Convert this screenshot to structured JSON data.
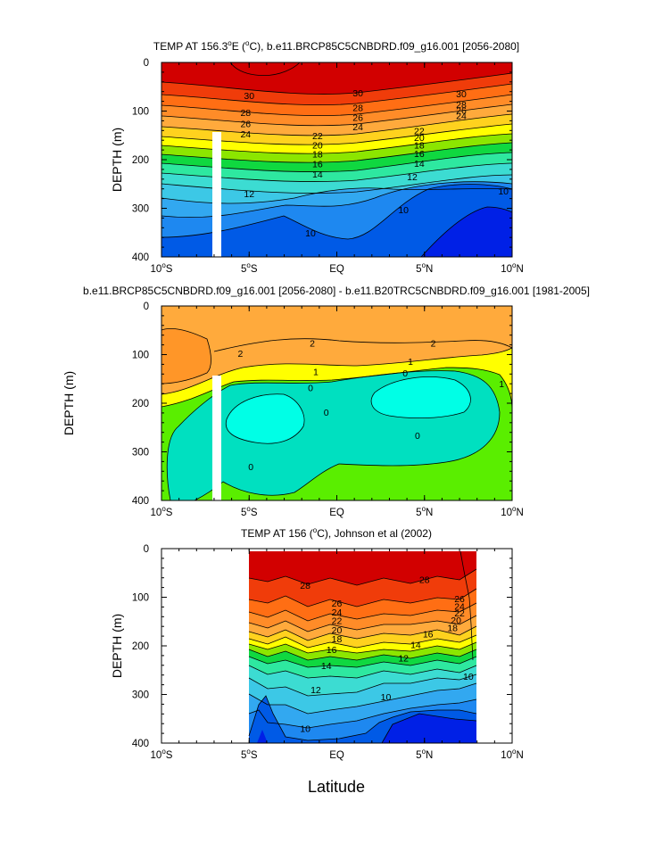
{
  "chart_data": [
    {
      "type": "contour",
      "title": "TEMP AT 156.3°E (°C), b.e11.BRCP85C5CNBDRD.f09_g16.001 [2056-2080]",
      "title_parts": {
        "pre": "TEMP AT 156.3",
        "sup": "o",
        "mid": "E (",
        "sup2": "o",
        "post": "C), b.e11.BRCP85C5CNBDRD.f09_g16.001 [2056-2080]"
      },
      "ylabel": "DEPTH (m)",
      "xlim": [
        -10,
        10
      ],
      "ylim": [
        0,
        400
      ],
      "y_inverted": true,
      "yticks": [
        "0",
        "100",
        "200",
        "300",
        "400"
      ],
      "contour_levels": [
        10,
        12,
        14,
        16,
        18,
        20,
        22,
        24,
        26,
        28,
        30
      ],
      "contour_labels": [
        {
          "x": -5.0,
          "y": 68,
          "text": "30"
        },
        {
          "x": 1.2,
          "y": 62,
          "text": "30"
        },
        {
          "x": 7.1,
          "y": 64,
          "text": "30"
        },
        {
          "x": -5.2,
          "y": 103,
          "text": "28"
        },
        {
          "x": 1.2,
          "y": 93,
          "text": "28"
        },
        {
          "x": 7.1,
          "y": 86,
          "text": "28"
        },
        {
          "x": -5.2,
          "y": 126,
          "text": "26"
        },
        {
          "x": 1.2,
          "y": 113,
          "text": "26"
        },
        {
          "x": 7.1,
          "y": 98,
          "text": "26"
        },
        {
          "x": -5.2,
          "y": 147,
          "text": "24"
        },
        {
          "x": 1.2,
          "y": 132,
          "text": "24"
        },
        {
          "x": 7.1,
          "y": 109,
          "text": "24"
        },
        {
          "x": -1.1,
          "y": 150,
          "text": "22"
        },
        {
          "x": 4.7,
          "y": 140,
          "text": "22"
        },
        {
          "x": -1.1,
          "y": 170,
          "text": "20"
        },
        {
          "x": 4.7,
          "y": 154,
          "text": "20"
        },
        {
          "x": -1.1,
          "y": 188,
          "text": "18"
        },
        {
          "x": 4.7,
          "y": 170,
          "text": "18"
        },
        {
          "x": -1.1,
          "y": 208,
          "text": "16"
        },
        {
          "x": 4.7,
          "y": 187,
          "text": "16"
        },
        {
          "x": -1.1,
          "y": 229,
          "text": "14"
        },
        {
          "x": 4.7,
          "y": 207,
          "text": "14"
        },
        {
          "x": -5.0,
          "y": 270,
          "text": "12"
        },
        {
          "x": 4.3,
          "y": 235,
          "text": "12"
        },
        {
          "x": 3.8,
          "y": 303,
          "text": "10"
        },
        {
          "x": -1.5,
          "y": 350,
          "text": "10"
        },
        {
          "x": 9.5,
          "y": 264,
          "text": "10"
        }
      ]
    },
    {
      "type": "contour",
      "title": "b.e11.BRCP85C5CNBDRD.f09_g16.001 [2056-2080] - b.e11.B20TRC5CNBDRD.f09_g16.001 [1981-2005]",
      "ylabel": "DEPTH (m)",
      "xlim": [
        -10,
        10
      ],
      "ylim": [
        0,
        400
      ],
      "y_inverted": true,
      "yticks": [
        "0",
        "100",
        "200",
        "300",
        "400"
      ],
      "contour_levels": [
        0,
        1,
        2
      ],
      "contour_labels": [
        {
          "x": -5.5,
          "y": 97,
          "text": "2"
        },
        {
          "x": -1.4,
          "y": 76,
          "text": "2"
        },
        {
          "x": 5.5,
          "y": 76,
          "text": "2"
        },
        {
          "x": -1.2,
          "y": 135,
          "text": "1"
        },
        {
          "x": 4.2,
          "y": 114,
          "text": "1"
        },
        {
          "x": 9.4,
          "y": 160,
          "text": "1"
        },
        {
          "x": -1.5,
          "y": 168,
          "text": "0"
        },
        {
          "x": 3.9,
          "y": 138,
          "text": "0"
        },
        {
          "x": -0.6,
          "y": 218,
          "text": "0"
        },
        {
          "x": 4.6,
          "y": 266,
          "text": "0"
        },
        {
          "x": -4.9,
          "y": 330,
          "text": "0"
        }
      ]
    },
    {
      "type": "contour",
      "title": "TEMP AT 156 (°C), Johnson et al (2002)",
      "title_parts": {
        "pre": "TEMP AT 156 (",
        "sup": "o",
        "post": "C), Johnson et al (2002)"
      },
      "xlabel": "Latitude",
      "ylabel": "DEPTH (m)",
      "xlim": [
        -10,
        10
      ],
      "ylim": [
        0,
        400
      ],
      "y_inverted": true,
      "yticks": [
        "0",
        "100",
        "200",
        "300",
        "400"
      ],
      "xticks": [
        {
          "deg": "10",
          "hemi": "S"
        },
        {
          "deg": "5",
          "hemi": "S"
        },
        {
          "text": "EQ"
        },
        {
          "deg": "5",
          "hemi": "N"
        },
        {
          "deg": "10",
          "hemi": "N"
        }
      ],
      "data_extent_x": [
        -5,
        8
      ],
      "contour_levels": [
        10,
        12,
        14,
        16,
        18,
        20,
        22,
        24,
        26,
        28
      ],
      "contour_labels": [
        {
          "x": -1.8,
          "y": 75,
          "text": "28"
        },
        {
          "x": 5.0,
          "y": 63,
          "text": "28"
        },
        {
          "x": 0.0,
          "y": 112,
          "text": "26"
        },
        {
          "x": 7.0,
          "y": 103,
          "text": "26"
        },
        {
          "x": 0.0,
          "y": 130,
          "text": "24"
        },
        {
          "x": 7.0,
          "y": 118,
          "text": "24"
        },
        {
          "x": 0.0,
          "y": 148,
          "text": "22"
        },
        {
          "x": 7.0,
          "y": 132,
          "text": "22"
        },
        {
          "x": 0.0,
          "y": 167,
          "text": "20"
        },
        {
          "x": 6.8,
          "y": 147,
          "text": "20"
        },
        {
          "x": 0.0,
          "y": 185,
          "text": "18"
        },
        {
          "x": 6.6,
          "y": 162,
          "text": "18"
        },
        {
          "x": -0.3,
          "y": 207,
          "text": "16"
        },
        {
          "x": 5.2,
          "y": 175,
          "text": "16"
        },
        {
          "x": -0.6,
          "y": 240,
          "text": "14"
        },
        {
          "x": 4.5,
          "y": 197,
          "text": "14"
        },
        {
          "x": -1.2,
          "y": 290,
          "text": "12"
        },
        {
          "x": 3.8,
          "y": 225,
          "text": "12"
        },
        {
          "x": 2.8,
          "y": 305,
          "text": "10"
        },
        {
          "x": -1.8,
          "y": 370,
          "text": "10"
        },
        {
          "x": 7.5,
          "y": 262,
          "text": "10"
        }
      ]
    }
  ],
  "xtick_labels": [
    {
      "deg": "10",
      "hemi": "S"
    },
    {
      "deg": "5",
      "hemi": "S"
    },
    {
      "text": "EQ"
    },
    {
      "deg": "5",
      "hemi": "N"
    },
    {
      "deg": "10",
      "hemi": "N"
    }
  ],
  "colors": {
    "temp_scale": [
      "#0020e6",
      "#005ae6",
      "#1e88f0",
      "#32a8f0",
      "#3cc8e6",
      "#3cdcd2",
      "#2ee8a0",
      "#10d840",
      "#8ce600",
      "#ffff00",
      "#ffd21e",
      "#ffaa3c",
      "#ff8c28",
      "#ff6e14",
      "#f03c0a",
      "#d20000"
    ],
    "diff_scale": [
      "#00ffe6",
      "#00e0c0",
      "#5aee00",
      "#ffff00",
      "#ffaa3c",
      "#ff9628"
    ],
    "mask": "#ffffff"
  }
}
